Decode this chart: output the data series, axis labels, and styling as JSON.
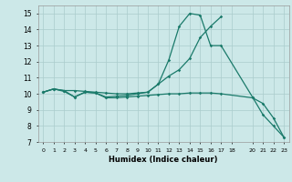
{
  "title": "",
  "xlabel": "Humidex (Indice chaleur)",
  "bg_color": "#cce8e8",
  "grid_color": "#aacccc",
  "line_color": "#1a7a6a",
  "xlim": [
    -0.5,
    23.5
  ],
  "ylim": [
    7,
    15.5
  ],
  "xtick_vals": [
    0,
    1,
    2,
    3,
    4,
    5,
    6,
    7,
    8,
    9,
    10,
    11,
    12,
    13,
    14,
    15,
    16,
    17,
    18,
    20,
    21,
    22,
    23
  ],
  "ytick_vals": [
    7,
    8,
    9,
    10,
    11,
    12,
    13,
    14,
    15
  ],
  "line1_x": [
    0,
    1,
    2,
    3,
    4,
    5,
    6,
    7,
    8,
    9,
    10,
    11,
    12,
    13,
    14,
    15,
    16,
    17
  ],
  "line1_y": [
    10.1,
    10.3,
    10.2,
    10.2,
    10.15,
    10.1,
    10.05,
    10.0,
    10.0,
    10.05,
    10.1,
    10.6,
    11.1,
    11.5,
    12.2,
    13.5,
    14.2,
    14.8
  ],
  "line2_x": [
    0,
    1,
    2,
    3,
    4,
    5,
    6,
    7,
    8,
    9,
    10,
    11,
    12,
    13,
    14,
    15,
    16,
    17,
    20,
    21,
    22,
    23
  ],
  "line2_y": [
    10.1,
    10.3,
    10.2,
    9.8,
    10.1,
    10.05,
    9.8,
    9.85,
    9.9,
    10.0,
    10.1,
    10.6,
    12.1,
    14.2,
    15.0,
    14.9,
    13.0,
    13.0,
    9.8,
    8.7,
    8.0,
    7.3
  ],
  "line3_x": [
    0,
    1,
    2,
    3,
    4,
    5,
    6,
    7,
    8,
    9,
    10,
    11,
    12,
    13,
    14,
    15,
    16,
    17,
    20,
    21,
    22,
    23
  ],
  "line3_y": [
    10.1,
    10.3,
    10.15,
    9.8,
    10.1,
    10.05,
    9.75,
    9.75,
    9.8,
    9.85,
    9.9,
    9.95,
    10.0,
    10.0,
    10.05,
    10.05,
    10.05,
    10.0,
    9.75,
    9.4,
    8.5,
    7.3
  ]
}
